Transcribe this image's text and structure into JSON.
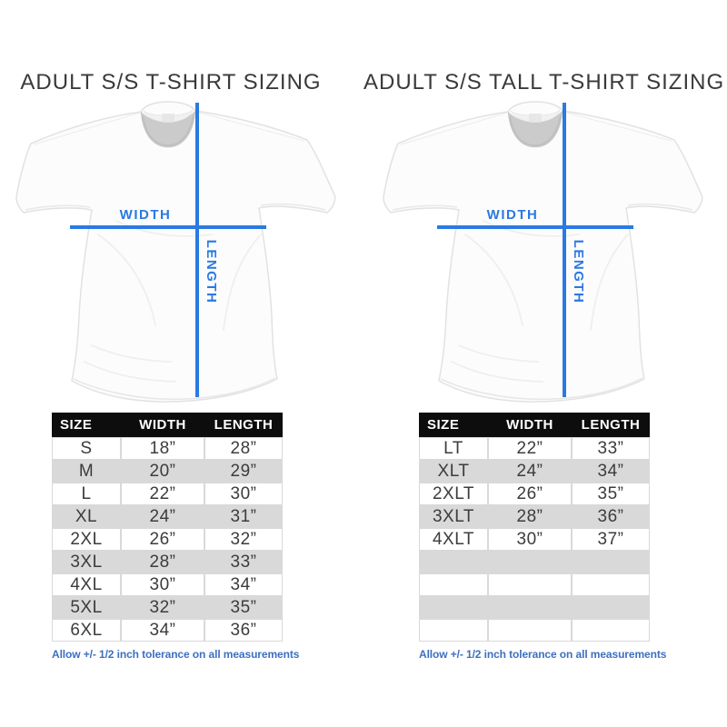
{
  "colors": {
    "accent": "#2b79e2",
    "note_text": "#3d70c0",
    "header_bg": "#0d0d0d",
    "header_text": "#ffffff",
    "row_alt": "#d9d9d9",
    "body_text": "#3c3c3c",
    "title_text": "#3a3a3a",
    "page_bg": "#ffffff"
  },
  "panels": [
    {
      "title": "ADULT S/S T-SHIRT SIZING",
      "shirt_labels": {
        "width": "WIDTH",
        "length": "LENGTH"
      },
      "table": {
        "headers": [
          "SIZE",
          "WIDTH",
          "LENGTH"
        ],
        "rows": [
          [
            "S",
            "18”",
            "28”"
          ],
          [
            "M",
            "20”",
            "29”"
          ],
          [
            "L",
            "22”",
            "30”"
          ],
          [
            "XL",
            "24”",
            "31”"
          ],
          [
            "2XL",
            "26”",
            "32”"
          ],
          [
            "3XL",
            "28”",
            "33”"
          ],
          [
            "4XL",
            "30”",
            "34”"
          ],
          [
            "5XL",
            "32”",
            "35”"
          ],
          [
            "6XL",
            "34”",
            "36”"
          ]
        ],
        "empty_rows": 0
      },
      "note": "Allow +/- 1/2 inch tolerance on all measurements"
    },
    {
      "title": "ADULT S/S TALL T-SHIRT SIZING",
      "shirt_labels": {
        "width": "WIDTH",
        "length": "LENGTH"
      },
      "table": {
        "headers": [
          "SIZE",
          "WIDTH",
          "LENGTH"
        ],
        "rows": [
          [
            "LT",
            "22”",
            "33”"
          ],
          [
            "XLT",
            "24”",
            "34”"
          ],
          [
            "2XLT",
            "26”",
            "35”"
          ],
          [
            "3XLT",
            "28”",
            "36”"
          ],
          [
            "4XLT",
            "30”",
            "37”"
          ]
        ],
        "empty_rows": 4
      },
      "note": "Allow +/- 1/2 inch tolerance on all measurements"
    }
  ],
  "chart_data": [
    {
      "type": "table",
      "title": "ADULT S/S T-SHIRT SIZING",
      "columns": [
        "SIZE",
        "WIDTH",
        "LENGTH"
      ],
      "rows": [
        [
          "S",
          "18”",
          "28”"
        ],
        [
          "M",
          "20”",
          "29”"
        ],
        [
          "L",
          "22”",
          "30”"
        ],
        [
          "XL",
          "24”",
          "31”"
        ],
        [
          "2XL",
          "26”",
          "32”"
        ],
        [
          "3XL",
          "28”",
          "33”"
        ],
        [
          "4XL",
          "30”",
          "34”"
        ],
        [
          "5XL",
          "32”",
          "35”"
        ],
        [
          "6XL",
          "34”",
          "36”"
        ]
      ],
      "note": "Allow +/- 1/2 inch tolerance on all measurements"
    },
    {
      "type": "table",
      "title": "ADULT S/S TALL T-SHIRT SIZING",
      "columns": [
        "SIZE",
        "WIDTH",
        "LENGTH"
      ],
      "rows": [
        [
          "LT",
          "22”",
          "33”"
        ],
        [
          "XLT",
          "24”",
          "34”"
        ],
        [
          "2XLT",
          "26”",
          "35”"
        ],
        [
          "3XLT",
          "28”",
          "36”"
        ],
        [
          "4XLT",
          "30”",
          "37”"
        ]
      ],
      "note": "Allow +/- 1/2 inch tolerance on all measurements"
    }
  ]
}
